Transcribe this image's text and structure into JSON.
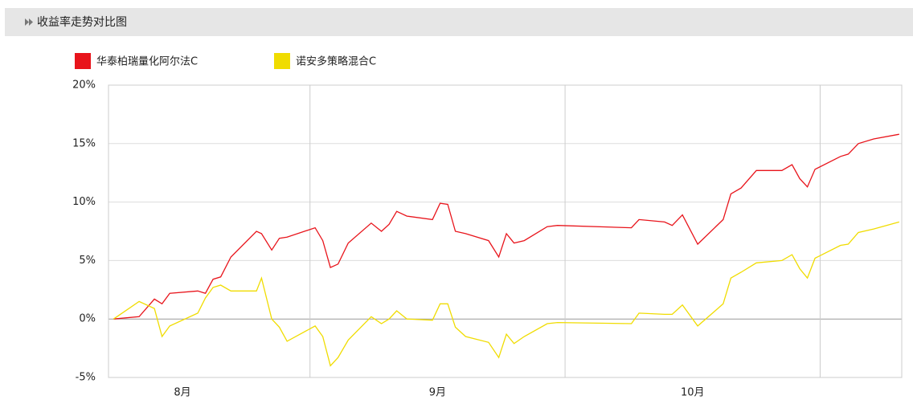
{
  "chart_data": {
    "type": "line",
    "title": "收益率走势对比图",
    "x": [
      8.23,
      8.33,
      8.39,
      8.42,
      8.45,
      8.56,
      8.59,
      8.62,
      8.65,
      8.69,
      8.79,
      8.81,
      8.85,
      8.88,
      8.91,
      9.02,
      9.05,
      9.08,
      9.11,
      9.15,
      9.24,
      9.28,
      9.31,
      9.34,
      9.38,
      9.48,
      9.51,
      9.54,
      9.57,
      9.61,
      9.7,
      9.74,
      9.77,
      9.8,
      9.84,
      9.93,
      9.97,
      10.26,
      10.29,
      10.39,
      10.42,
      10.46,
      10.52,
      10.62,
      10.65,
      10.69,
      10.75,
      10.85,
      10.89,
      10.92,
      10.95,
      10.98,
      11.08,
      11.11,
      11.15,
      11.21,
      11.31
    ],
    "series": [
      {
        "name": "华泰柏瑞量化阿尔法C",
        "color": "#e8141b",
        "values": [
          0.0,
          0.2,
          1.7,
          1.3,
          2.2,
          2.4,
          2.2,
          3.4,
          3.6,
          5.3,
          7.5,
          7.3,
          5.9,
          6.9,
          7.0,
          7.8,
          6.7,
          4.4,
          4.7,
          6.5,
          8.2,
          7.5,
          8.1,
          9.2,
          8.8,
          8.5,
          9.9,
          9.8,
          7.5,
          7.3,
          6.7,
          5.3,
          7.3,
          6.5,
          6.7,
          7.9,
          8.0,
          7.8,
          8.5,
          8.3,
          8.0,
          8.9,
          6.4,
          8.5,
          10.7,
          11.2,
          12.7,
          12.7,
          13.2,
          12.0,
          11.3,
          12.8,
          13.9,
          14.1,
          15.0,
          15.4,
          15.8
        ]
      },
      {
        "name": "诺安多策略混合C",
        "color": "#f0dc00",
        "values": [
          0.0,
          1.5,
          0.9,
          -1.5,
          -0.6,
          0.5,
          1.8,
          2.7,
          2.9,
          2.4,
          2.4,
          3.5,
          0.0,
          -0.7,
          -1.9,
          -0.6,
          -1.5,
          -4.0,
          -3.3,
          -1.8,
          0.2,
          -0.4,
          0.0,
          0.7,
          0.0,
          -0.1,
          1.3,
          1.3,
          -0.7,
          -1.5,
          -2.0,
          -3.3,
          -1.3,
          -2.1,
          -1.5,
          -0.4,
          -0.3,
          -0.4,
          0.5,
          0.4,
          0.4,
          1.2,
          -0.6,
          1.3,
          3.5,
          4.0,
          4.8,
          5.0,
          5.5,
          4.3,
          3.5,
          5.2,
          6.3,
          6.4,
          7.4,
          7.7,
          8.3
        ]
      }
    ],
    "xlim": [
      8.21,
      11.32
    ],
    "xticks": [
      {
        "value": 8.5,
        "label": "8月"
      },
      {
        "value": 9.5,
        "label": "9月"
      },
      {
        "value": 10.5,
        "label": "10月"
      }
    ],
    "xgrid": [
      9,
      10,
      11
    ],
    "ylim": [
      -5,
      20
    ],
    "yticks": [
      {
        "value": -5,
        "label": "-5%"
      },
      {
        "value": 0,
        "label": "0%"
      },
      {
        "value": 5,
        "label": "5%"
      },
      {
        "value": 10,
        "label": "10%"
      },
      {
        "value": 15,
        "label": "15%"
      },
      {
        "value": 20,
        "label": "20%"
      }
    ],
    "grid": true
  }
}
